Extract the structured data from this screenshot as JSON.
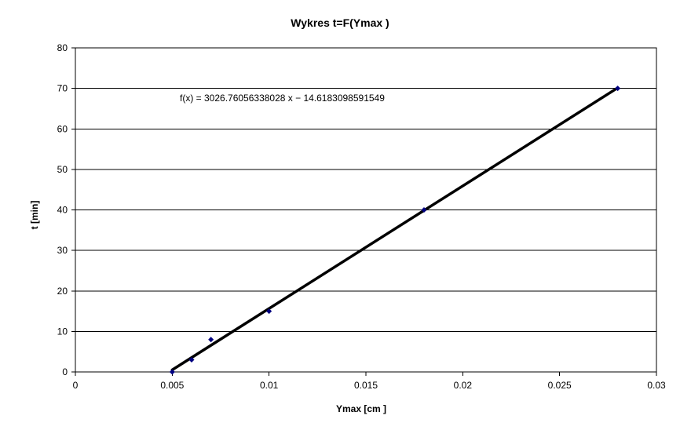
{
  "chart_data": {
    "type": "scatter",
    "title": "Wykres t=F(Ymax   )",
    "xlabel": "Ymax  [cm   ]",
    "ylabel": "t [min]",
    "xlim": [
      0,
      0.03
    ],
    "ylim": [
      0,
      80
    ],
    "x_ticks": [
      "0",
      "0.005",
      "0.01",
      "0.015",
      "0.02",
      "0.025",
      "0.03"
    ],
    "x_tick_values": [
      0,
      0.005,
      0.01,
      0.015,
      0.02,
      0.025,
      0.03
    ],
    "y_ticks": [
      "0",
      "10",
      "20",
      "30",
      "40",
      "50",
      "60",
      "70",
      "80"
    ],
    "y_tick_values": [
      0,
      10,
      20,
      30,
      40,
      50,
      60,
      70,
      80
    ],
    "grid": "horizontal",
    "series": [
      {
        "x": [
          0.005,
          0.006,
          0.007,
          0.01,
          0.018,
          0.028
        ],
        "y": [
          0,
          3,
          8,
          15,
          40,
          70
        ],
        "color": "#000080",
        "marker": "diamond"
      }
    ],
    "trendline": {
      "slope": 3026.76056338028,
      "intercept": -14.6183098591549,
      "x_range": [
        0.005,
        0.028
      ],
      "color": "#000000",
      "equation_label": "f(x) = 3026.76056338028 x − 14.6183098591549"
    }
  }
}
